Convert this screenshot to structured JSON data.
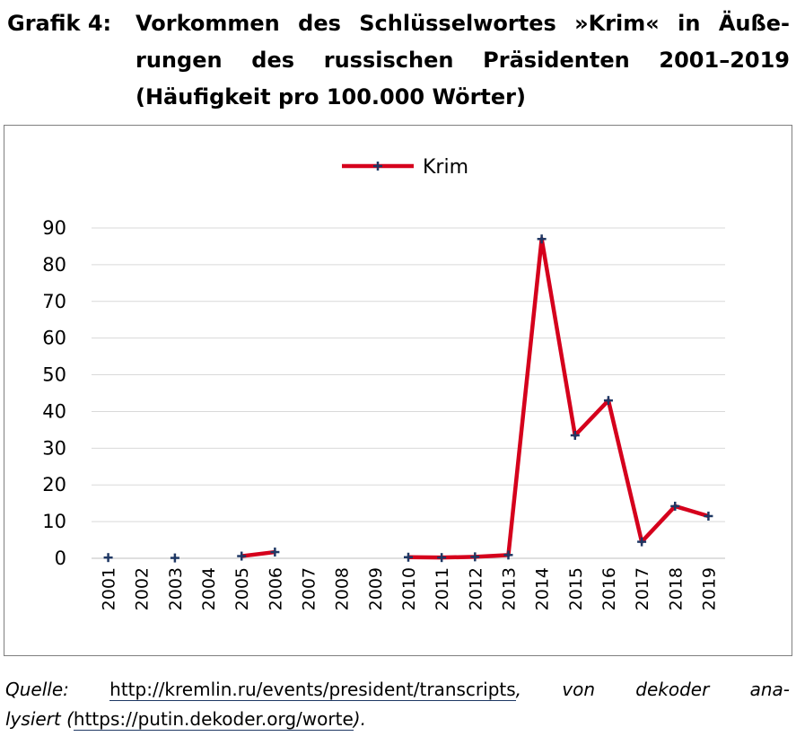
{
  "header": {
    "label": "Grafik 4:",
    "title_lines": [
      "Vorkommen des Schlüsselwortes »Krim« in Äuße-",
      "rungen des russischen Präsidenten 2001–2019",
      "(Häufigkeit pro 100.000 Wörter)"
    ]
  },
  "source": {
    "prefix": "Quelle:",
    "url1": "http://kremlin.ru/events/president/transcripts",
    "middle": ", von dekoder ana-",
    "middle2": "lysiert (",
    "url2": "https://putin.dekoder.org/worte",
    "suffix": ")."
  },
  "colors": {
    "line": "#d5001c",
    "marker": "#1f3864",
    "grid": "#d9d9d9",
    "axis": "#bfbfbf"
  },
  "chart_data": {
    "type": "line",
    "legend_position": "top-center",
    "grid": true,
    "ylim": [
      0,
      90
    ],
    "yticks": [
      0,
      10,
      20,
      30,
      40,
      50,
      60,
      70,
      80,
      90
    ],
    "categories": [
      "2001",
      "2002",
      "2003",
      "2004",
      "2005",
      "2006",
      "2007",
      "2008",
      "2009",
      "2010",
      "2011",
      "2012",
      "2013",
      "2014",
      "2015",
      "2016",
      "2017",
      "2018",
      "2019"
    ],
    "series": [
      {
        "name": "Krim",
        "values": [
          0.2,
          null,
          0.1,
          null,
          0.6,
          1.7,
          null,
          null,
          null,
          0.3,
          0.2,
          0.4,
          0.9,
          87,
          33.5,
          43,
          4.5,
          14.2,
          11.5
        ]
      }
    ]
  }
}
